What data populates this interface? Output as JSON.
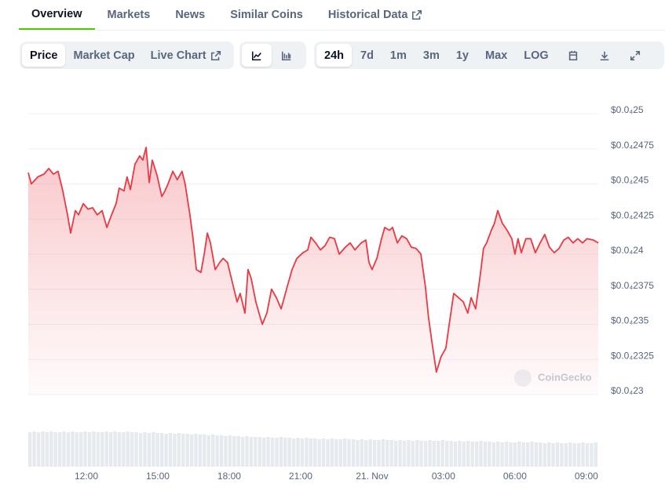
{
  "tabs": {
    "items": [
      "Overview",
      "Markets",
      "News",
      "Similar Coins",
      "Historical Data"
    ],
    "selected": 0
  },
  "metric_buttons": {
    "items": [
      "Price",
      "Market Cap",
      "Live Chart"
    ],
    "selected": 0
  },
  "range_buttons": {
    "items": [
      "24h",
      "7d",
      "1m",
      "3m",
      "1y",
      "Max",
      "LOG"
    ],
    "selected": 0
  },
  "chart_data": {
    "type": "line",
    "color": "#ea3943",
    "grid": true,
    "watermark": "CoinGecko",
    "x": [
      9.56,
      9.69,
      9.96,
      10.22,
      10.42,
      10.62,
      10.81,
      11.01,
      11.21,
      11.34,
      11.54,
      11.67,
      11.87,
      12.07,
      12.26,
      12.46,
      12.66,
      12.86,
      13.06,
      13.25,
      13.38,
      13.58,
      13.71,
      13.85,
      14.04,
      14.24,
      14.37,
      14.51,
      14.64,
      14.77,
      14.97,
      15.17,
      15.3,
      15.43,
      15.63,
      15.82,
      16.02,
      16.15,
      16.35,
      16.48,
      16.62,
      16.81,
      16.95,
      17.08,
      17.21,
      17.41,
      17.6,
      17.74,
      17.93,
      18.13,
      18.33,
      18.46,
      18.66,
      18.79,
      18.92,
      19.12,
      19.25,
      19.39,
      19.58,
      19.78,
      19.98,
      20.18,
      20.31,
      20.44,
      20.64,
      20.84,
      21.1,
      21.3,
      21.43,
      21.63,
      21.83,
      22.02,
      22.22,
      22.42,
      22.62,
      22.88,
      23.08,
      23.28,
      23.54,
      23.74,
      23.87,
      24.0,
      24.2,
      24.4,
      24.53,
      24.73,
      24.86,
      25.06,
      25.25,
      25.45,
      25.65,
      25.85,
      26.05,
      26.24,
      26.37,
      26.51,
      26.7,
      26.9,
      27.1,
      27.23,
      27.43,
      27.63,
      27.83,
      28.02,
      28.16,
      28.35,
      28.55,
      28.68,
      28.81,
      29.01,
      29.14,
      29.28,
      29.47,
      29.67,
      29.87,
      30.0,
      30.13,
      30.27,
      30.46,
      30.66,
      30.86,
      31.06,
      31.25,
      31.45,
      31.65,
      31.85,
      32.05,
      32.24,
      32.44,
      32.64,
      32.84,
      33.03,
      33.3,
      33.5
    ],
    "values": [
      2.458e-05,
      2.45e-05,
      2.455e-05,
      2.457e-05,
      2.461e-05,
      2.457e-05,
      2.459e-05,
      2.445e-05,
      2.428e-05,
      2.415e-05,
      2.431e-05,
      2.428e-05,
      2.436e-05,
      2.432e-05,
      2.433e-05,
      2.428e-05,
      2.431e-05,
      2.419e-05,
      2.428e-05,
      2.436e-05,
      2.447e-05,
      2.445e-05,
      2.455e-05,
      2.446e-05,
      2.464e-05,
      2.47e-05,
      2.467e-05,
      2.476e-05,
      2.451e-05,
      2.467e-05,
      2.456e-05,
      2.441e-05,
      2.445e-05,
      2.45e-05,
      2.459e-05,
      2.453e-05,
      2.459e-05,
      2.45e-05,
      2.428e-05,
      2.411e-05,
      2.389e-05,
      2.387e-05,
      2.4e-05,
      2.415e-05,
      2.408e-05,
      2.389e-05,
      2.394e-05,
      2.397e-05,
      2.394e-05,
      2.38e-05,
      2.366e-05,
      2.372e-05,
      2.358e-05,
      2.389e-05,
      2.383e-05,
      2.366e-05,
      2.358e-05,
      2.35e-05,
      2.358e-05,
      2.375e-05,
      2.369e-05,
      2.361e-05,
      2.369e-05,
      2.377e-05,
      2.389e-05,
      2.397e-05,
      2.401e-05,
      2.403e-05,
      2.412e-05,
      2.408e-05,
      2.403e-05,
      2.406e-05,
      2.412e-05,
      2.411e-05,
      2.4e-05,
      2.405e-05,
      2.408e-05,
      2.403e-05,
      2.408e-05,
      2.41e-05,
      2.394e-05,
      2.389e-05,
      2.397e-05,
      2.411e-05,
      2.419e-05,
      2.417e-05,
      2.419e-05,
      2.408e-05,
      2.413e-05,
      2.411e-05,
      2.405e-05,
      2.404e-05,
      2.4e-05,
      2.377e-05,
      2.355e-05,
      2.338e-05,
      2.316e-05,
      2.327e-05,
      2.333e-05,
      2.349e-05,
      2.372e-05,
      2.369e-05,
      2.366e-05,
      2.358e-05,
      2.369e-05,
      2.361e-05,
      2.386e-05,
      2.404e-05,
      2.408e-05,
      2.417e-05,
      2.422e-05,
      2.431e-05,
      2.422e-05,
      2.417e-05,
      2.411e-05,
      2.4e-05,
      2.411e-05,
      2.401e-05,
      2.411e-05,
      2.411e-05,
      2.401e-05,
      2.408e-05,
      2.414e-05,
      2.405e-05,
      2.401e-05,
      2.404e-05,
      2.41e-05,
      2.412e-05,
      2.408e-05,
      2.411e-05,
      2.408e-05,
      2.411e-05,
      2.41e-05,
      2.408e-05
    ],
    "volume": [
      44,
      45,
      44,
      45,
      44,
      45,
      44,
      44,
      45,
      44,
      45,
      44,
      44,
      45,
      44,
      45,
      44,
      44,
      45,
      44,
      45,
      44,
      44,
      45,
      44,
      44,
      43,
      44,
      43,
      44,
      43,
      43,
      42,
      43,
      42,
      43,
      42,
      42,
      41,
      42,
      41,
      41,
      40,
      41,
      40,
      40,
      39,
      40,
      39,
      39,
      38,
      39,
      38,
      38,
      38,
      37,
      38,
      37,
      37,
      38,
      37,
      37,
      36,
      37,
      36,
      37,
      36,
      36,
      35,
      36,
      35,
      36,
      35,
      35,
      36,
      35,
      35,
      34,
      35,
      34,
      35,
      34,
      34,
      35,
      34,
      34,
      33,
      34,
      33,
      34,
      33,
      34,
      33,
      33,
      34,
      33,
      33,
      34,
      33,
      33,
      32,
      33,
      32,
      33,
      32,
      32,
      33,
      32,
      32,
      31,
      32,
      31,
      32,
      31,
      31,
      32,
      31,
      31,
      32,
      31,
      31,
      30,
      31,
      30,
      31,
      30,
      30,
      31,
      30,
      30,
      31,
      30,
      30,
      31
    ],
    "xlim": [
      9.56,
      33.5
    ],
    "xticks": [
      {
        "value": 12,
        "label": "12:00"
      },
      {
        "value": 15,
        "label": "15:00"
      },
      {
        "value": 18,
        "label": "18:00"
      },
      {
        "value": 21,
        "label": "21:00"
      },
      {
        "value": 24,
        "label": "21. Nov"
      },
      {
        "value": 27,
        "label": "03:00"
      },
      {
        "value": 30,
        "label": "06:00"
      },
      {
        "value": 33,
        "label": "09:00"
      }
    ],
    "ylim": [
      2.3e-05,
      2.5e-05
    ],
    "yticks": [
      {
        "value": 2.5e-05,
        "label": "$0.0₄25"
      },
      {
        "value": 2.475e-05,
        "label": "$0.0₄2475"
      },
      {
        "value": 2.45e-05,
        "label": "$0.0₄245"
      },
      {
        "value": 2.425e-05,
        "label": "$0.0₄2425"
      },
      {
        "value": 2.4e-05,
        "label": "$0.0₄24"
      },
      {
        "value": 2.375e-05,
        "label": "$0.0₄2375"
      },
      {
        "value": 2.35e-05,
        "label": "$0.0₄235"
      },
      {
        "value": 2.325e-05,
        "label": "$0.0₄2325"
      },
      {
        "value": 2.3e-05,
        "label": "$0.0₄23"
      }
    ]
  }
}
